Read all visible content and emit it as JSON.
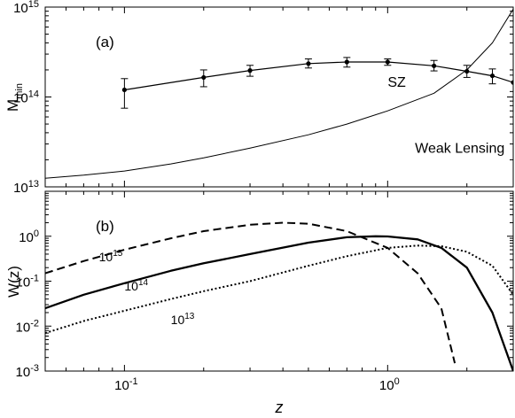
{
  "chart_data": [
    {
      "type": "line",
      "panel_label": "(a)",
      "ylabel": "M",
      "ylabel_sub": "min",
      "xscale": "log",
      "yscale": "log",
      "xlim": [
        0.05,
        3.0
      ],
      "ylim": [
        10000000000000.0,
        1000000000000000.0
      ],
      "yticks": [
        {
          "value": 10000000000000.0,
          "base": "10",
          "exp": "13"
        },
        {
          "value": 100000000000000.0,
          "base": "10",
          "exp": "14"
        },
        {
          "value": 1000000000000000.0,
          "base": "10",
          "exp": "15"
        }
      ],
      "annotations": [
        {
          "text": "SZ",
          "x": 1.0,
          "y": 130000000000000.0
        },
        {
          "text": "Weak Lensing",
          "x": 1.27,
          "y": 24000000000000.0
        }
      ],
      "series": [
        {
          "style": "points-with-errorbars",
          "color": "#000000",
          "x": [
            0.1,
            0.2,
            0.3,
            0.5,
            0.7,
            1.0,
            1.5,
            2.0,
            2.5,
            3.0
          ],
          "y": [
            120000000000000.0,
            165000000000000.0,
            197000000000000.0,
            235000000000000.0,
            245000000000000.0,
            245000000000000.0,
            222000000000000.0,
            193000000000000.0,
            172000000000000.0,
            145000000000000.0
          ],
          "yerr_low": [
            75000000000000.0,
            130000000000000.0,
            170000000000000.0,
            210000000000000.0,
            215000000000000.0,
            225000000000000.0,
            195000000000000.0,
            165000000000000.0,
            140000000000000.0,
            115000000000000.0
          ],
          "yerr_high": [
            160000000000000.0,
            200000000000000.0,
            225000000000000.0,
            265000000000000.0,
            275000000000000.0,
            265000000000000.0,
            255000000000000.0,
            225000000000000.0,
            205000000000000.0,
            175000000000000.0
          ]
        },
        {
          "style": "solid-thin",
          "color": "#000000",
          "x": [
            0.05,
            0.07,
            0.1,
            0.15,
            0.2,
            0.3,
            0.5,
            0.7,
            1.0,
            1.5,
            2.0,
            2.5,
            3.0
          ],
          "y": [
            12500000000000.0,
            13500000000000.0,
            15000000000000.0,
            18000000000000.0,
            21000000000000.0,
            27000000000000.0,
            38000000000000.0,
            50000000000000.0,
            70000000000000.0,
            110000000000000.0,
            200000000000000.0,
            400000000000000.0,
            950000000000000.0
          ]
        }
      ]
    },
    {
      "type": "line",
      "panel_label": "(b)",
      "ylabel": "W(z)",
      "xlabel": "z",
      "xscale": "log",
      "yscale": "log",
      "xlim": [
        0.05,
        3.0
      ],
      "ylim": [
        0.001,
        10
      ],
      "xticks": [
        {
          "value": 0.1,
          "base": "10",
          "exp": "-1"
        },
        {
          "value": 1.0,
          "base": "10",
          "exp": "0"
        }
      ],
      "yticks": [
        {
          "value": 0.001,
          "base": "10",
          "exp": "-3"
        },
        {
          "value": 0.01,
          "base": "10",
          "exp": "-2"
        },
        {
          "value": 0.1,
          "base": "10",
          "exp": "-1"
        },
        {
          "value": 1,
          "base": "10",
          "exp": "0"
        }
      ],
      "series": [
        {
          "label_base": "10",
          "label_exp": "15",
          "label_pos": [
            0.08,
            0.28
          ],
          "style": "dashed",
          "color": "#000000",
          "x": [
            0.05,
            0.07,
            0.1,
            0.15,
            0.2,
            0.3,
            0.4,
            0.5,
            0.7,
            1.0,
            1.3,
            1.6,
            1.8
          ],
          "y": [
            0.15,
            0.28,
            0.5,
            0.9,
            1.3,
            1.8,
            2.0,
            1.9,
            1.3,
            0.55,
            0.15,
            0.025,
            0.0015
          ]
        },
        {
          "label_base": "10",
          "label_exp": "14",
          "label_pos": [
            0.1,
            0.062
          ],
          "style": "solid-thick",
          "color": "#000000",
          "x": [
            0.05,
            0.07,
            0.1,
            0.15,
            0.2,
            0.3,
            0.5,
            0.7,
            0.9,
            1.0,
            1.3,
            1.6,
            2.0,
            2.5,
            3.0
          ],
          "y": [
            0.025,
            0.05,
            0.09,
            0.17,
            0.25,
            0.4,
            0.72,
            0.95,
            1.0,
            0.99,
            0.85,
            0.55,
            0.2,
            0.02,
            0.001
          ]
        },
        {
          "label_base": "10",
          "label_exp": "13",
          "label_pos": [
            0.15,
            0.011
          ],
          "style": "dotted",
          "color": "#000000",
          "x": [
            0.05,
            0.07,
            0.1,
            0.15,
            0.2,
            0.3,
            0.5,
            0.7,
            1.0,
            1.3,
            1.6,
            2.0,
            2.5,
            3.0
          ],
          "y": [
            0.007,
            0.013,
            0.022,
            0.04,
            0.06,
            0.1,
            0.22,
            0.36,
            0.55,
            0.62,
            0.6,
            0.45,
            0.22,
            0.05
          ]
        }
      ]
    }
  ]
}
